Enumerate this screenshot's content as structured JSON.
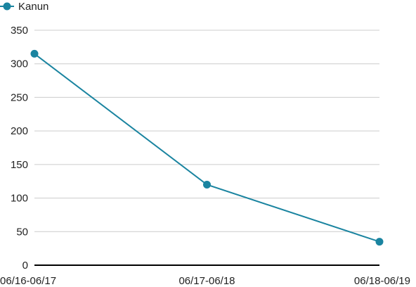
{
  "chart_data": {
    "type": "line",
    "categories": [
      "06/16-06/17",
      "06/17-06/18",
      "06/18-06/19"
    ],
    "series": [
      {
        "name": "Kanun",
        "values": [
          315,
          120,
          35
        ],
        "color": "#1a84a0"
      }
    ],
    "ylim": [
      0,
      350
    ],
    "yticks": [
      0,
      50,
      100,
      150,
      200,
      250,
      300,
      350
    ],
    "grid": true,
    "legend_position": "top-left",
    "title": "",
    "xlabel": "",
    "ylabel": ""
  }
}
